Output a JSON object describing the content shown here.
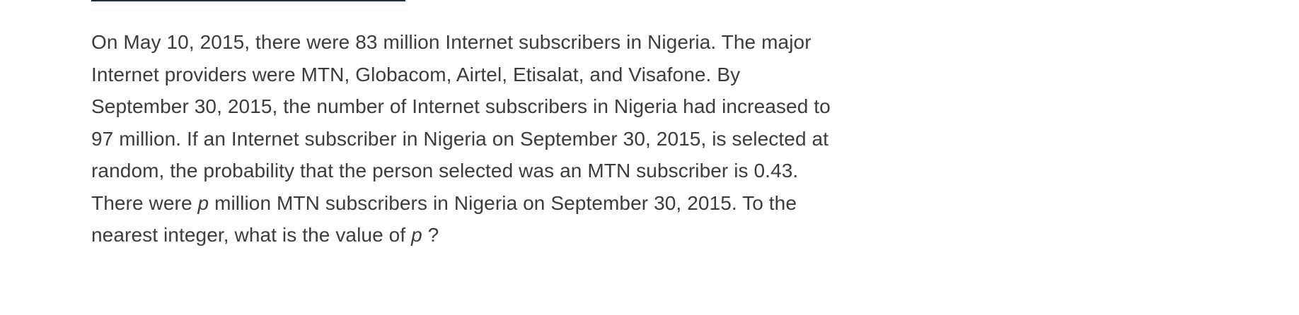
{
  "question": {
    "part1": "On May 10, 2015, there were 83 million Internet subscribers in Nigeria. The major Internet providers were MTN, Globacom, Airtel, Etisalat, and Visafone. By September 30, 2015, the number of Internet subscribers in Nigeria had increased to 97 million. If an Internet subscriber in Nigeria on September 30, 2015, is selected at random, the probability that the person selected was an MTN subscriber is 0.43. There were ",
    "variable": "p",
    "part2": " million MTN subscribers in Nigeria on September 30, 2015. To the nearest integer, what is the value of ",
    "part3": " ?"
  },
  "colors": {
    "text": "#3c3c3c",
    "rule": "#1f2a44"
  }
}
